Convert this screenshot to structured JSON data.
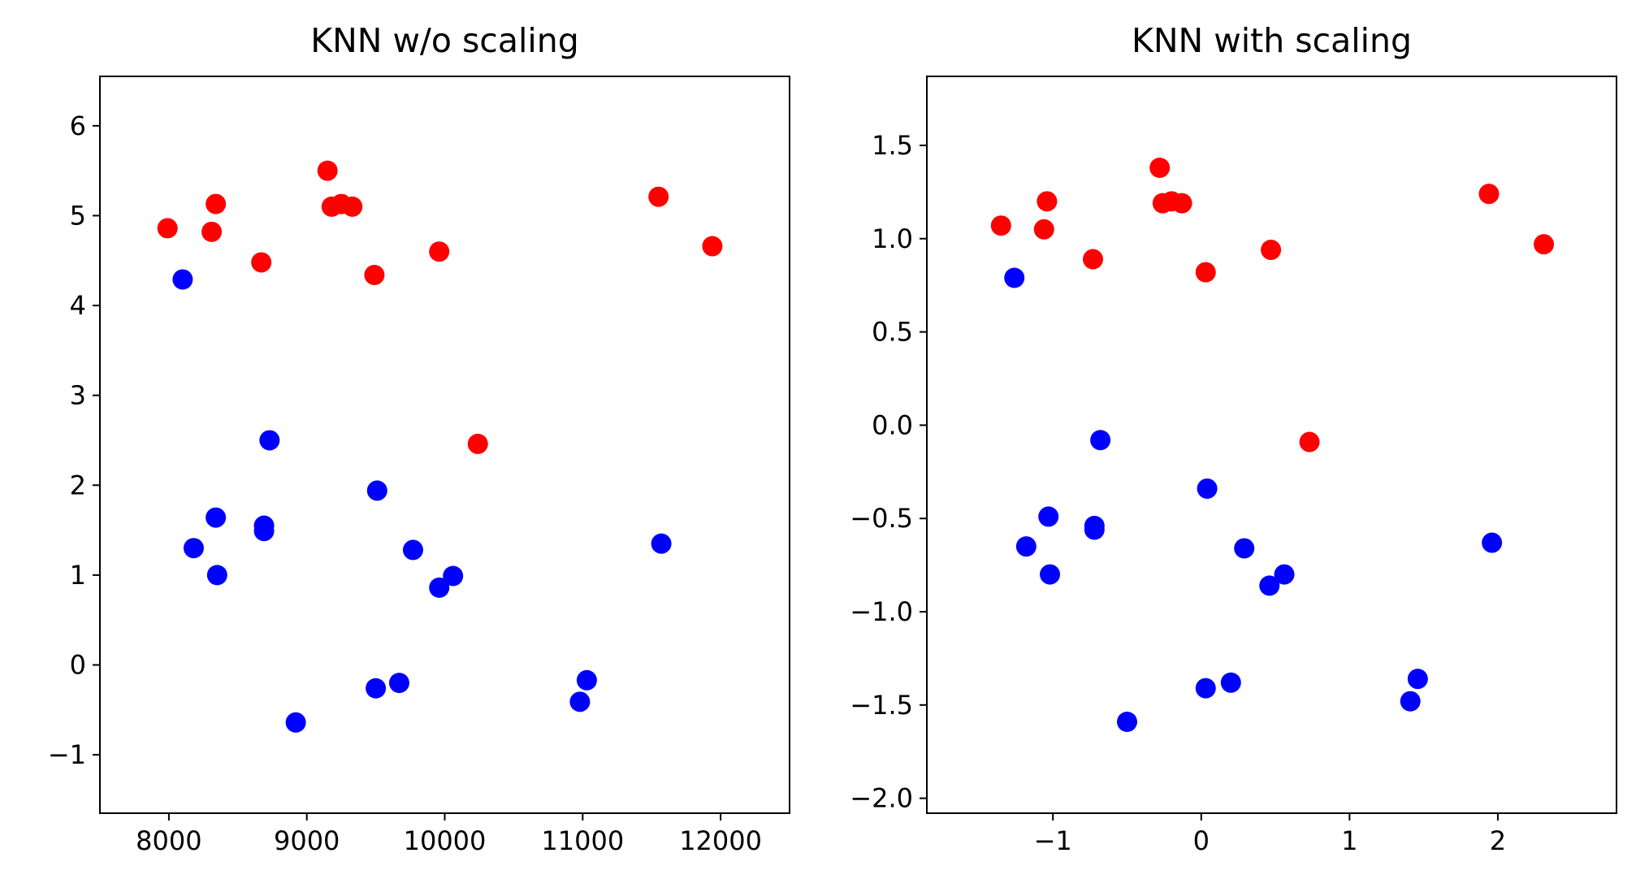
{
  "chart_data": [
    {
      "type": "scatter",
      "title": "KNN w/o scaling",
      "xlabel": "",
      "ylabel": "",
      "xlim": [
        7500,
        12500
      ],
      "ylim": [
        -1.65,
        6.55
      ],
      "xticks": [
        8000,
        9000,
        10000,
        11000,
        12000
      ],
      "xtick_labels": [
        "8000",
        "9000",
        "10000",
        "11000",
        "12000"
      ],
      "yticks": [
        -1,
        0,
        1,
        2,
        3,
        4,
        5,
        6
      ],
      "ytick_labels": [
        "−1",
        "0",
        "1",
        "2",
        "3",
        "4",
        "5",
        "6"
      ],
      "grid": false,
      "series": [
        {
          "color": "#ff0000",
          "points": [
            [
              7990,
              4.86
            ],
            [
              8310,
              4.82
            ],
            [
              8340,
              5.13
            ],
            [
              8670,
              4.48
            ],
            [
              9150,
              5.5
            ],
            [
              9180,
              5.1
            ],
            [
              9250,
              5.13
            ],
            [
              9330,
              5.1
            ],
            [
              9490,
              4.34
            ],
            [
              9960,
              4.6
            ],
            [
              10240,
              2.46
            ],
            [
              11550,
              5.21
            ],
            [
              11940,
              4.66
            ]
          ]
        },
        {
          "color": "#0000ff",
          "points": [
            [
              8100,
              4.29
            ],
            [
              8180,
              1.3
            ],
            [
              8340,
              1.64
            ],
            [
              8350,
              1.0
            ],
            [
              8690,
              1.55
            ],
            [
              8690,
              1.49
            ],
            [
              8730,
              2.5
            ],
            [
              8920,
              -0.64
            ],
            [
              9500,
              -0.26
            ],
            [
              9510,
              1.94
            ],
            [
              9670,
              -0.2
            ],
            [
              9770,
              1.28
            ],
            [
              9960,
              0.86
            ],
            [
              10060,
              0.99
            ],
            [
              10980,
              -0.41
            ],
            [
              11030,
              -0.17
            ],
            [
              11570,
              1.35
            ]
          ]
        }
      ]
    },
    {
      "type": "scatter",
      "title": "KNN with scaling",
      "xlabel": "",
      "ylabel": "",
      "xlim": [
        -1.85,
        2.8
      ],
      "ylim": [
        -2.08,
        1.87
      ],
      "xticks": [
        -1,
        0,
        1,
        2
      ],
      "xtick_labels": [
        "−1",
        "0",
        "1",
        "2"
      ],
      "yticks": [
        -2.0,
        -1.5,
        -1.0,
        -0.5,
        0.0,
        0.5,
        1.0,
        1.5
      ],
      "ytick_labels": [
        "−2.0",
        "−1.5",
        "−1.0",
        "−0.5",
        "0.0",
        "0.5",
        "1.0",
        "1.5"
      ],
      "grid": false,
      "series": [
        {
          "color": "#ff0000",
          "points": [
            [
              -1.35,
              1.07
            ],
            [
              -1.06,
              1.05
            ],
            [
              -1.04,
              1.2
            ],
            [
              -0.73,
              0.89
            ],
            [
              -0.28,
              1.38
            ],
            [
              -0.26,
              1.19
            ],
            [
              -0.2,
              1.2
            ],
            [
              -0.13,
              1.19
            ],
            [
              0.03,
              0.82
            ],
            [
              0.47,
              0.94
            ],
            [
              0.73,
              -0.09
            ],
            [
              1.94,
              1.24
            ],
            [
              2.31,
              0.97
            ]
          ]
        },
        {
          "color": "#0000ff",
          "points": [
            [
              -1.26,
              0.79
            ],
            [
              -1.18,
              -0.65
            ],
            [
              -1.03,
              -0.49
            ],
            [
              -1.02,
              -0.8
            ],
            [
              -0.72,
              -0.54
            ],
            [
              -0.72,
              -0.56
            ],
            [
              -0.68,
              -0.08
            ],
            [
              -0.5,
              -1.59
            ],
            [
              0.03,
              -1.41
            ],
            [
              0.04,
              -0.34
            ],
            [
              0.2,
              -1.38
            ],
            [
              0.29,
              -0.66
            ],
            [
              0.46,
              -0.86
            ],
            [
              0.56,
              -0.8
            ],
            [
              1.41,
              -1.48
            ],
            [
              1.46,
              -1.36
            ],
            [
              1.96,
              -0.63
            ]
          ]
        }
      ]
    }
  ]
}
